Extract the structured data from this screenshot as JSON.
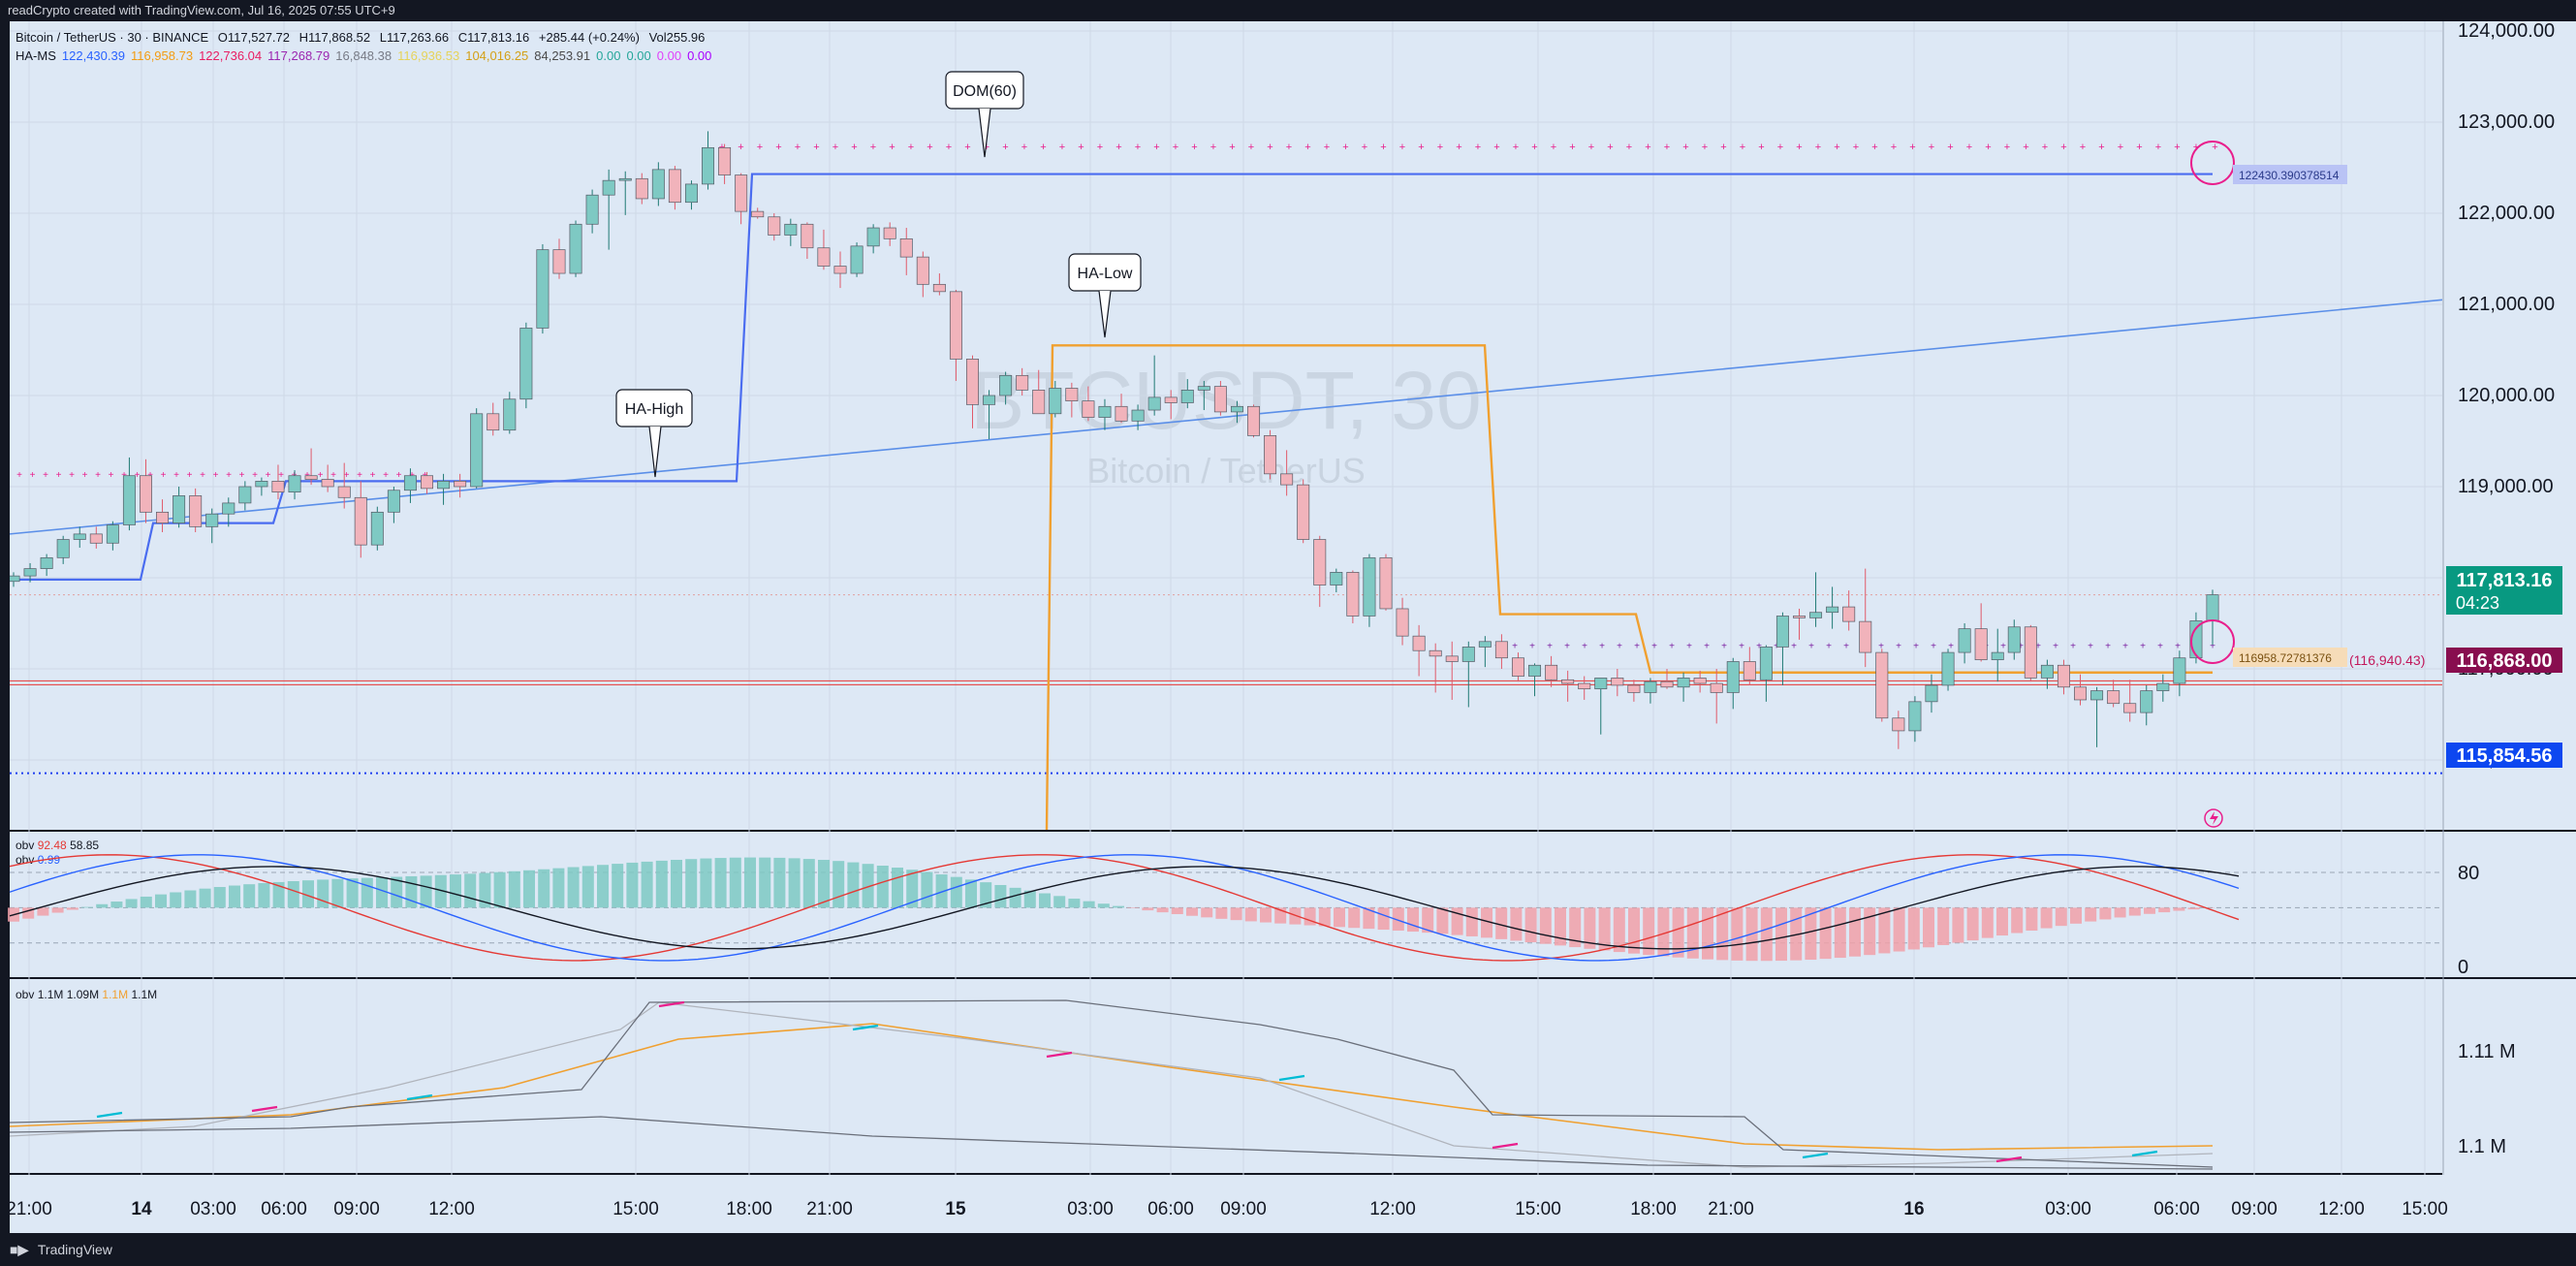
{
  "header": {
    "title": "readCrypto created with TradingView.com, Jul 16, 2025 07:55 UTC+9"
  },
  "footer": {
    "brand": "TradingView",
    "logo": "tradingview-logo-icon"
  },
  "legend": {
    "symbol": "Bitcoin / TetherUS · 30 · BINANCE",
    "ohlc": {
      "o": "O117,527.72",
      "h": "H117,868.52",
      "l": "L117,263.66",
      "c": "C117,813.16",
      "chg": "+285.44 (+0.24%)",
      "vol": "Vol255.96"
    },
    "ha_ms_name": "HA-MS",
    "ha_ms_values": [
      {
        "v": "122,430.39",
        "color": "#2962ff"
      },
      {
        "v": "116,958.73",
        "color": "#f39c12"
      },
      {
        "v": "122,736.04",
        "color": "#e91e63"
      },
      {
        "v": "117,268.79",
        "color": "#9c27b0"
      },
      {
        "v": "16,848.38",
        "color": "#787b86"
      },
      {
        "v": "116,936.53",
        "color": "#e6d35a"
      },
      {
        "v": "104,016.25",
        "color": "#d4a017"
      },
      {
        "v": "84,253.91",
        "color": "#4a4a4a"
      },
      {
        "v": "0.00",
        "color": "#26a69a"
      },
      {
        "v": "0.00",
        "color": "#26a69a"
      },
      {
        "v": "0.00",
        "color": "#e040fb"
      },
      {
        "v": "0.00",
        "color": "#aa00ff"
      }
    ]
  },
  "watermark": {
    "main": "BTCUSDT, 30",
    "sub": "Bitcoin / TetherUS"
  },
  "annotations": {
    "dom60": "DOM(60)",
    "ha_low": "HA-Low",
    "ha_high": "HA-High",
    "pink_label": "122430.390378514",
    "orange_label": "116958.72781376",
    "red_label": "(116,940.43)"
  },
  "price_badges": {
    "current": "117,813.16",
    "countdown": "04:23",
    "red": "116,868.00",
    "blue": "115,854.56"
  },
  "colors": {
    "background": "#dde8f5",
    "up": "#7ec9c3",
    "down": "#f1b3bb",
    "ha_line": "#4a6cf0",
    "ha_low": "#f0a030",
    "dom": "#e91e8c",
    "trend": "#5b8fe8",
    "badge_green": "#089981",
    "badge_red": "#880e4f",
    "badge_blue": "#0d47f0"
  },
  "panes": {
    "obv1": {
      "label": "obv",
      "val1": "92.48",
      "val2": "58.85",
      "label2": "obv",
      "val3": "0.99"
    },
    "obv2": {
      "label": "obv",
      "values": "1.1M 1.09M",
      "val_orange": "1.1M",
      "val_last": "1.1M"
    }
  },
  "chart_data": {
    "type": "candlestick",
    "title": "BTCUSDT, 30",
    "time_labels": [
      "21:00",
      "14",
      "03:00",
      "06:00",
      "09:00",
      "12:00",
      "15:00",
      "18:00",
      "21:00",
      "15",
      "03:00",
      "06:00",
      "09:00",
      "12:00",
      "15:00",
      "18:00",
      "21:00",
      "16",
      "03:00",
      "06:00",
      "09:00",
      "12:00",
      "15:00"
    ],
    "y_axis": {
      "ticks": [
        "124,000.00",
        "123,000.00",
        "122,000.00",
        "121,000.00",
        "120,000.00",
        "119,000.00",
        "118,000.00",
        "117,000.00",
        "116,000.00"
      ],
      "range": [
        115600,
        124200
      ]
    },
    "candles_ohlc": [
      [
        117960,
        118060,
        117900,
        118020
      ],
      [
        118020,
        118160,
        117950,
        118100
      ],
      [
        118100,
        118260,
        118020,
        118220
      ],
      [
        118220,
        118460,
        118150,
        118420
      ],
      [
        118420,
        118560,
        118330,
        118480
      ],
      [
        118480,
        118560,
        118320,
        118380
      ],
      [
        118380,
        118620,
        118300,
        118580
      ],
      [
        118580,
        119320,
        118520,
        119120
      ],
      [
        119120,
        119300,
        118600,
        118720
      ],
      [
        118720,
        118860,
        118500,
        118600
      ],
      [
        118600,
        119000,
        118550,
        118900
      ],
      [
        118900,
        118980,
        118500,
        118560
      ],
      [
        118560,
        118760,
        118380,
        118700
      ],
      [
        118700,
        118880,
        118560,
        118820
      ],
      [
        118820,
        119060,
        118740,
        119000
      ],
      [
        119000,
        119100,
        118900,
        119060
      ],
      [
        119060,
        119240,
        118860,
        118940
      ],
      [
        118940,
        119180,
        118860,
        119120
      ],
      [
        119120,
        119420,
        119020,
        119080
      ],
      [
        119080,
        119240,
        118940,
        119000
      ],
      [
        119000,
        119260,
        118760,
        118880
      ],
      [
        118880,
        119060,
        118220,
        118360
      ],
      [
        118360,
        118780,
        118300,
        118720
      ],
      [
        118720,
        119000,
        118600,
        118960
      ],
      [
        118960,
        119200,
        118820,
        119120
      ],
      [
        119120,
        119160,
        118920,
        118980
      ],
      [
        118980,
        119140,
        118800,
        119060
      ],
      [
        119060,
        119140,
        118880,
        119000
      ],
      [
        119000,
        119860,
        118980,
        119800
      ],
      [
        119800,
        119920,
        119560,
        119620
      ],
      [
        119620,
        120040,
        119580,
        119960
      ],
      [
        119960,
        120800,
        119860,
        120740
      ],
      [
        120740,
        121660,
        120680,
        121600
      ],
      [
        121600,
        121720,
        121280,
        121340
      ],
      [
        121340,
        121920,
        121300,
        121880
      ],
      [
        121880,
        122260,
        121780,
        122200
      ],
      [
        122200,
        122480,
        121600,
        122360
      ],
      [
        122360,
        122460,
        121980,
        122380
      ],
      [
        122380,
        122440,
        122100,
        122160
      ],
      [
        122160,
        122560,
        122080,
        122480
      ],
      [
        122480,
        122520,
        122040,
        122120
      ],
      [
        122120,
        122360,
        122040,
        122320
      ],
      [
        122320,
        122900,
        122260,
        122720
      ],
      [
        122720,
        122760,
        122320,
        122420
      ],
      [
        122420,
        122440,
        121880,
        122020
      ],
      [
        122020,
        122060,
        121940,
        121960
      ],
      [
        121960,
        122000,
        121700,
        121760
      ],
      [
        121760,
        121940,
        121640,
        121880
      ],
      [
        121880,
        121900,
        121500,
        121620
      ],
      [
        121620,
        121820,
        121380,
        121420
      ],
      [
        121420,
        121580,
        121180,
        121340
      ],
      [
        121340,
        121680,
        121300,
        121640
      ],
      [
        121640,
        121880,
        121560,
        121840
      ],
      [
        121840,
        121900,
        121640,
        121720
      ],
      [
        121720,
        121840,
        121320,
        121520
      ],
      [
        121520,
        121580,
        121080,
        121220
      ],
      [
        121220,
        121340,
        121100,
        121140
      ],
      [
        121140,
        121160,
        120160,
        120400
      ],
      [
        120400,
        120440,
        119640,
        119900
      ],
      [
        119900,
        120060,
        119520,
        120000
      ],
      [
        120000,
        120260,
        119900,
        120220
      ],
      [
        120220,
        120300,
        120000,
        120060
      ],
      [
        120060,
        120280,
        119860,
        119800
      ],
      [
        119800,
        120160,
        119760,
        120080
      ],
      [
        120080,
        120140,
        119760,
        119940
      ],
      [
        119940,
        120100,
        119720,
        119760
      ],
      [
        119760,
        119960,
        119620,
        119880
      ],
      [
        119880,
        120020,
        119700,
        119720
      ],
      [
        119720,
        119900,
        119620,
        119840
      ],
      [
        119840,
        120440,
        119780,
        119980
      ],
      [
        119980,
        120060,
        119740,
        119920
      ],
      [
        119920,
        120180,
        119860,
        120060
      ],
      [
        120060,
        120160,
        119840,
        120100
      ],
      [
        120100,
        120160,
        119780,
        119820
      ],
      [
        119820,
        119940,
        119700,
        119880
      ],
      [
        119880,
        119900,
        119540,
        119560
      ],
      [
        119560,
        119620,
        119080,
        119140
      ],
      [
        119140,
        119400,
        118900,
        119020
      ],
      [
        119020,
        119080,
        118380,
        118420
      ],
      [
        118420,
        118460,
        117680,
        117920
      ],
      [
        117920,
        118100,
        117840,
        118060
      ],
      [
        118060,
        118080,
        117500,
        117580
      ],
      [
        117580,
        118260,
        117460,
        118220
      ],
      [
        118220,
        118260,
        117640,
        117660
      ],
      [
        117660,
        117780,
        117260,
        117360
      ],
      [
        117360,
        117480,
        116920,
        117200
      ],
      [
        117200,
        117280,
        116740,
        117140
      ],
      [
        117140,
        117300,
        116660,
        117080
      ],
      [
        117080,
        117300,
        116580,
        117240
      ],
      [
        117240,
        117360,
        117020,
        117300
      ],
      [
        117300,
        117380,
        117000,
        117120
      ],
      [
        117120,
        117180,
        116860,
        116920
      ],
      [
        116920,
        117060,
        116700,
        117040
      ],
      [
        117040,
        117140,
        116800,
        116880
      ],
      [
        116880,
        116980,
        116640,
        116840
      ],
      [
        116840,
        116920,
        116660,
        116780
      ],
      [
        116780,
        116860,
        116280,
        116900
      ],
      [
        116900,
        117000,
        116700,
        116820
      ],
      [
        116820,
        116880,
        116640,
        116740
      ],
      [
        116740,
        116900,
        116620,
        116860
      ],
      [
        116860,
        117000,
        116780,
        116800
      ],
      [
        116800,
        116960,
        116640,
        116900
      ],
      [
        116900,
        116980,
        116740,
        116840
      ],
      [
        116840,
        117000,
        116400,
        116740
      ],
      [
        116740,
        117120,
        116560,
        117080
      ],
      [
        117080,
        117240,
        116820,
        116880
      ],
      [
        116880,
        117260,
        116640,
        117240
      ],
      [
        117240,
        117620,
        116820,
        117580
      ],
      [
        117580,
        117660,
        117320,
        117560
      ],
      [
        117560,
        118060,
        117460,
        117620
      ],
      [
        117620,
        117900,
        117440,
        117680
      ],
      [
        117680,
        117860,
        117420,
        117520
      ],
      [
        117520,
        118100,
        117020,
        117180
      ],
      [
        117180,
        117220,
        116420,
        116460
      ],
      [
        116460,
        116540,
        116120,
        116320
      ],
      [
        116320,
        116700,
        116200,
        116640
      ],
      [
        116640,
        116940,
        116520,
        116820
      ],
      [
        116820,
        117220,
        116760,
        117180
      ],
      [
        117180,
        117500,
        117060,
        117440
      ],
      [
        117440,
        117720,
        117080,
        117100
      ],
      [
        117100,
        117440,
        116860,
        117180
      ],
      [
        117180,
        117540,
        117100,
        117460
      ],
      [
        117460,
        117480,
        116860,
        116900
      ],
      [
        116900,
        117100,
        116780,
        117040
      ],
      [
        117040,
        117100,
        116720,
        116800
      ],
      [
        116800,
        116940,
        116600,
        116660
      ],
      [
        116660,
        116800,
        116140,
        116760
      ],
      [
        116760,
        116880,
        116580,
        116620
      ],
      [
        116620,
        116880,
        116420,
        116520
      ],
      [
        116520,
        116820,
        116380,
        116760
      ],
      [
        116760,
        116940,
        116640,
        116840
      ],
      [
        116840,
        117200,
        116700,
        117120
      ],
      [
        117120,
        117620,
        117060,
        117527
      ],
      [
        117527,
        117868,
        117263,
        117813
      ]
    ],
    "overlays": {
      "ha_high_steps": [
        117980,
        118600,
        119060,
        122430
      ],
      "ha_low_steps": [
        120550,
        117600,
        116960
      ],
      "dom_level": 122736,
      "trend_line": {
        "from": 118480,
        "to": 121050
      },
      "red_level": 116868,
      "blue_level": 115854.56
    },
    "obv_pane": {
      "ticks": [
        "80",
        "0"
      ],
      "range": [
        0,
        100
      ]
    },
    "obv_pane2": {
      "ticks": [
        "1.11 M",
        "1.1 M"
      ]
    }
  }
}
